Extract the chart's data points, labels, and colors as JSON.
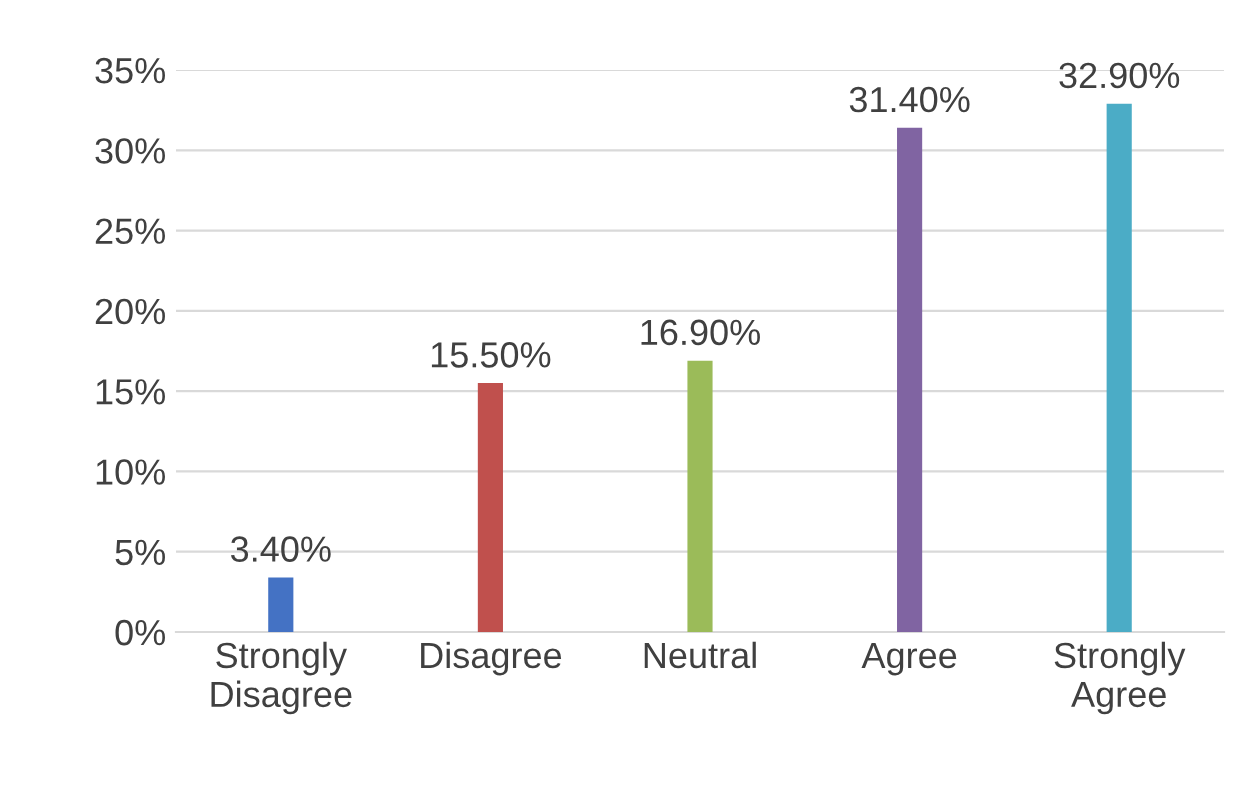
{
  "chart_data": {
    "type": "bar",
    "categories": [
      "Strongly Disagree",
      "Disagree",
      "Neutral",
      "Agree",
      "Strongly Agree"
    ],
    "values": [
      3.4,
      15.5,
      16.9,
      31.4,
      32.9
    ],
    "colors": [
      "#4472c4",
      "#c0504d",
      "#9bbb59",
      "#8064a2",
      "#4bacc6"
    ],
    "value_labels": [
      "3.40%",
      "15.50%",
      "16.90%",
      "31.40%",
      "32.90%"
    ],
    "ylim": [
      0,
      35
    ],
    "yticks": [
      {
        "value": 0,
        "label": "0%"
      },
      {
        "value": 5,
        "label": "5%"
      },
      {
        "value": 10,
        "label": "10%"
      },
      {
        "value": 15,
        "label": "15%"
      },
      {
        "value": 20,
        "label": "20%"
      },
      {
        "value": 25,
        "label": "25%"
      },
      {
        "value": 30,
        "label": "30%"
      },
      {
        "value": 35,
        "label": "35%"
      }
    ],
    "grid": "y",
    "legend": false
  }
}
